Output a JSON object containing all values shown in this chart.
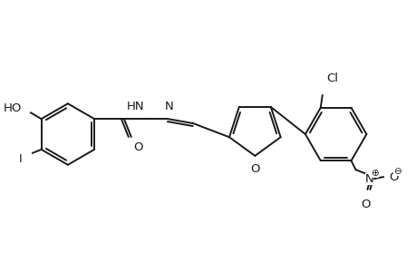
{
  "bg_color": "#ffffff",
  "line_color": "#1a1a1a",
  "line_width": 1.4,
  "font_size": 10,
  "figsize": [
    4.6,
    3.0
  ],
  "dpi": 100,
  "xlim": [
    0,
    460
  ],
  "ylim": [
    0,
    300
  ]
}
